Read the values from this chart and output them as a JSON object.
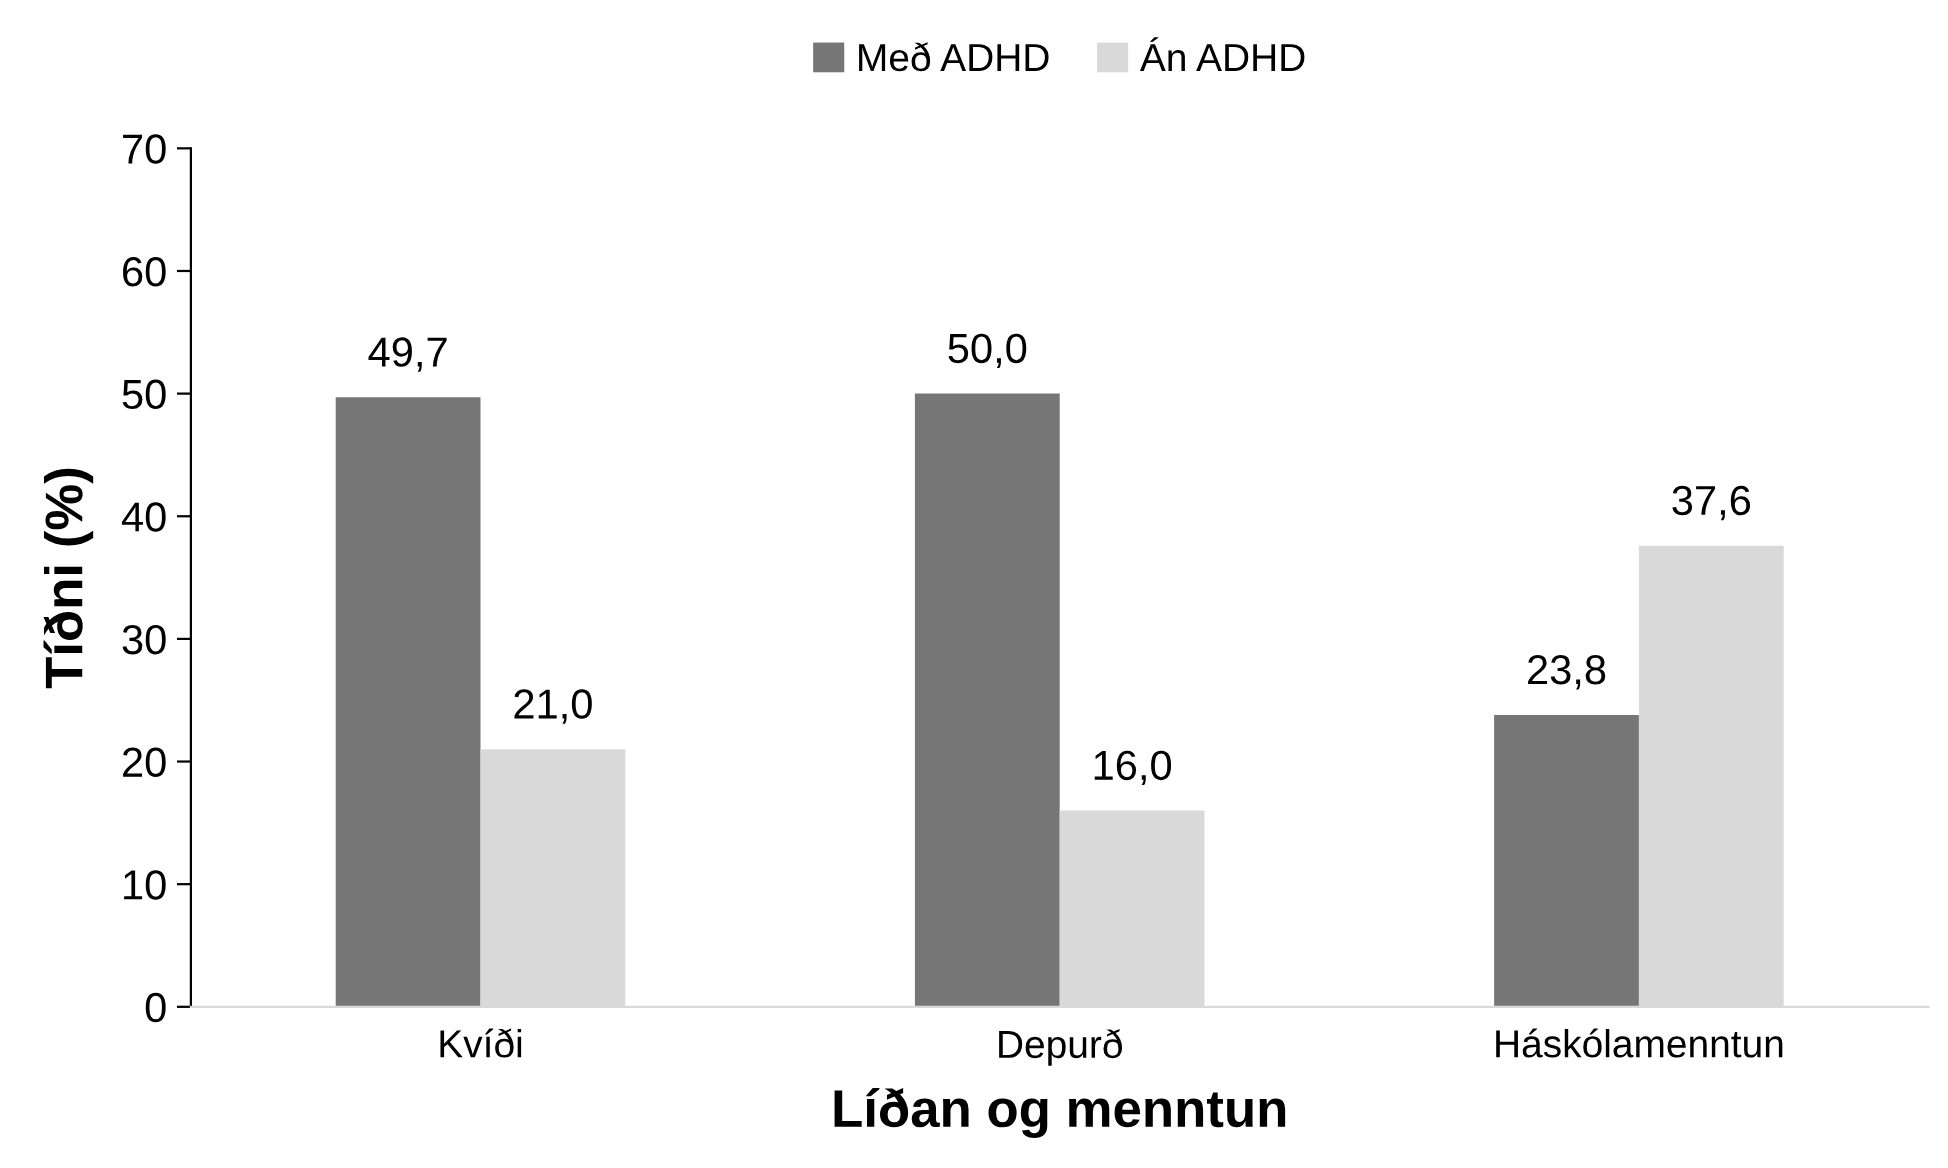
{
  "chart_data": {
    "type": "bar",
    "xlabel": "Líðan og menntun",
    "ylabel": "Tíðni (%)",
    "categories": [
      "Kvíði",
      "Depurð",
      "Háskólamenntun"
    ],
    "series": [
      {
        "name": "Með ADHD",
        "color": "#767676",
        "values": [
          49.7,
          50.0,
          23.8
        ],
        "value_labels": [
          "49,7",
          "50,0",
          "23,8"
        ]
      },
      {
        "name": "Án ADHD",
        "color": "#d9d9d9",
        "values": [
          21.0,
          16.0,
          37.6
        ],
        "value_labels": [
          "21,0",
          "16,0",
          "37,6"
        ]
      }
    ],
    "ylim": [
      0,
      70
    ],
    "yticks": [
      0,
      10,
      20,
      30,
      40,
      50,
      60,
      70
    ],
    "grid": false,
    "legend": "top"
  }
}
